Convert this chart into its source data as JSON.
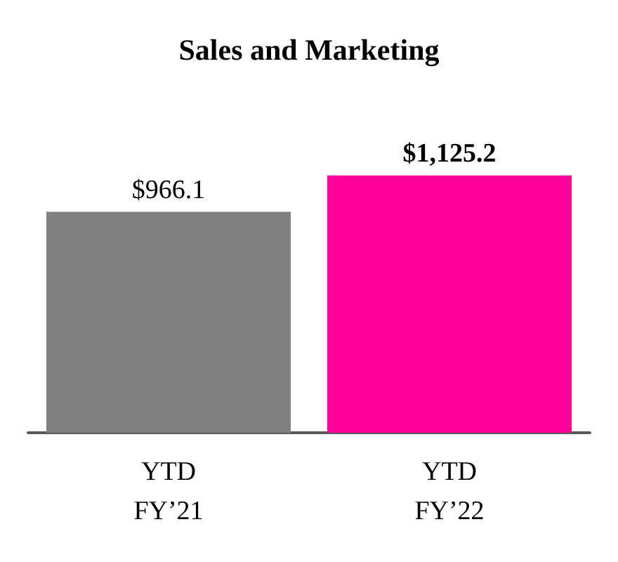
{
  "chart_data": {
    "type": "bar",
    "title": "Sales and Marketing",
    "categories": [
      "YTD\nFY’21",
      "YTD\nFY’22"
    ],
    "values": [
      966.1,
      1125.2
    ],
    "colors": [
      "#808080",
      "#ff0099"
    ],
    "value_labels": [
      "$966.1",
      "$1,125.2"
    ]
  }
}
